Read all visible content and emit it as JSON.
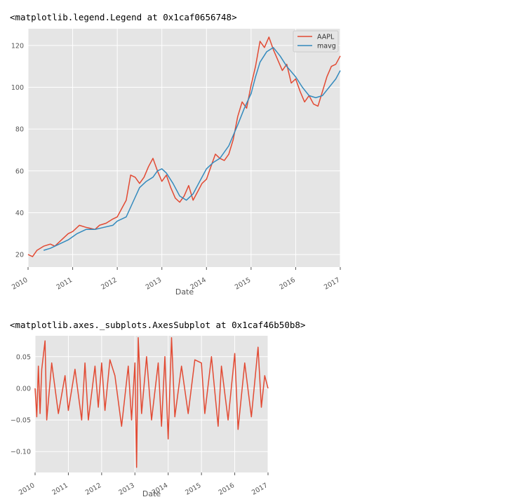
{
  "outputs": [
    {
      "repr": "<matplotlib.legend.Legend at 0x1caf0656748>"
    },
    {
      "repr": "<matplotlib.axes._subplots.AxesSubplot at 0x1caf46b50b8>"
    }
  ],
  "colors": {
    "background": "#e5e5e5",
    "grid": "#ffffff",
    "series_aapl": "#e24a33",
    "series_mavg": "#348abd"
  },
  "chart_data": [
    {
      "type": "line",
      "xlabel": "Date",
      "ylabel": "",
      "x_ticks": [
        "2010",
        "2011",
        "2012",
        "2013",
        "2014",
        "2015",
        "2016",
        "2017"
      ],
      "y_ticks": [
        20,
        40,
        60,
        80,
        100,
        120
      ],
      "xlim": [
        2010.0,
        2017.0
      ],
      "ylim": [
        14,
        128
      ],
      "grid": true,
      "legend": "top-right",
      "series": [
        {
          "name": "AAPL",
          "color": "#e24a33",
          "x": [
            2010.0,
            2010.1,
            2010.2,
            2010.35,
            2010.5,
            2010.6,
            2010.75,
            2010.9,
            2011.0,
            2011.15,
            2011.3,
            2011.5,
            2011.6,
            2011.75,
            2011.9,
            2012.0,
            2012.1,
            2012.2,
            2012.3,
            2012.4,
            2012.5,
            2012.6,
            2012.7,
            2012.8,
            2012.9,
            2013.0,
            2013.1,
            2013.2,
            2013.3,
            2013.4,
            2013.5,
            2013.6,
            2013.7,
            2013.8,
            2013.9,
            2014.0,
            2014.1,
            2014.2,
            2014.3,
            2014.4,
            2014.5,
            2014.6,
            2014.7,
            2014.8,
            2014.9,
            2015.0,
            2015.1,
            2015.2,
            2015.3,
            2015.4,
            2015.5,
            2015.6,
            2015.7,
            2015.8,
            2015.9,
            2016.0,
            2016.1,
            2016.2,
            2016.3,
            2016.4,
            2016.5,
            2016.6,
            2016.7,
            2016.8,
            2016.9,
            2017.0
          ],
          "values": [
            20,
            19,
            22,
            24,
            25,
            24,
            27,
            30,
            31,
            34,
            33,
            32,
            34,
            35,
            37,
            38,
            42,
            46,
            58,
            57,
            54,
            57,
            62,
            66,
            60,
            55,
            58,
            52,
            47,
            45,
            48,
            53,
            46,
            50,
            54,
            56,
            62,
            68,
            66,
            65,
            68,
            75,
            86,
            93,
            90,
            101,
            110,
            122,
            119,
            124,
            118,
            113,
            108,
            111,
            102,
            104,
            98,
            93,
            96,
            92,
            91,
            98,
            105,
            110,
            111,
            115
          ]
        },
        {
          "name": "mavg",
          "color": "#348abd",
          "x": [
            2010.35,
            2010.5,
            2010.7,
            2010.9,
            2011.1,
            2011.3,
            2011.5,
            2011.7,
            2011.9,
            2012.0,
            2012.2,
            2012.35,
            2012.5,
            2012.65,
            2012.8,
            2012.9,
            2013.0,
            2013.1,
            2013.25,
            2013.4,
            2013.55,
            2013.7,
            2013.85,
            2014.0,
            2014.15,
            2014.3,
            2014.5,
            2014.7,
            2014.85,
            2015.0,
            2015.1,
            2015.2,
            2015.35,
            2015.5,
            2015.65,
            2015.8,
            2016.0,
            2016.15,
            2016.3,
            2016.45,
            2016.6,
            2016.75,
            2016.9,
            2017.0
          ],
          "values": [
            22,
            23,
            25,
            27,
            30,
            32,
            32,
            33,
            34,
            36,
            38,
            45,
            52,
            55,
            57,
            60,
            61,
            59,
            54,
            48,
            46,
            49,
            55,
            61,
            64,
            66,
            72,
            82,
            90,
            97,
            105,
            112,
            117,
            119,
            115,
            110,
            105,
            100,
            96,
            95,
            96,
            100,
            104,
            108
          ]
        }
      ]
    },
    {
      "type": "line",
      "xlabel": "Date",
      "ylabel": "",
      "x_ticks": [
        "2010",
        "2011",
        "2012",
        "2013",
        "2014",
        "2015",
        "2016",
        "2017"
      ],
      "y_ticks": [
        "0.05",
        "0.00",
        "−0.05",
        "−0.10"
      ],
      "xlim": [
        2010.0,
        2017.0
      ],
      "ylim": [
        -0.133,
        0.083
      ],
      "grid": true,
      "series": [
        {
          "name": "",
          "color": "#e24a33",
          "x": [
            2010.0,
            2010.05,
            2010.1,
            2010.15,
            2010.2,
            2010.3,
            2010.35,
            2010.5,
            2010.7,
            2010.9,
            2011.0,
            2011.2,
            2011.4,
            2011.5,
            2011.6,
            2011.8,
            2011.9,
            2012.0,
            2012.1,
            2012.25,
            2012.4,
            2012.6,
            2012.8,
            2012.9,
            2013.0,
            2013.05,
            2013.1,
            2013.2,
            2013.35,
            2013.5,
            2013.7,
            2013.8,
            2013.9,
            2014.0,
            2014.1,
            2014.2,
            2014.4,
            2014.6,
            2014.8,
            2015.0,
            2015.1,
            2015.3,
            2015.5,
            2015.6,
            2015.8,
            2016.0,
            2016.1,
            2016.3,
            2016.5,
            2016.7,
            2016.8,
            2016.9,
            2017.0
          ],
          "values": [
            0.0,
            -0.045,
            0.035,
            -0.04,
            0.03,
            0.075,
            -0.05,
            0.04,
            -0.04,
            0.02,
            -0.035,
            0.03,
            -0.05,
            0.04,
            -0.05,
            0.035,
            -0.03,
            0.04,
            -0.035,
            0.045,
            0.02,
            -0.06,
            0.035,
            -0.05,
            0.04,
            -0.125,
            0.08,
            -0.04,
            0.05,
            -0.05,
            0.04,
            -0.06,
            0.05,
            -0.08,
            0.08,
            -0.045,
            0.035,
            -0.04,
            0.045,
            0.04,
            -0.04,
            0.05,
            -0.06,
            0.035,
            -0.05,
            0.055,
            -0.065,
            0.04,
            -0.045,
            0.065,
            -0.03,
            0.02,
            0.0
          ]
        }
      ]
    }
  ]
}
